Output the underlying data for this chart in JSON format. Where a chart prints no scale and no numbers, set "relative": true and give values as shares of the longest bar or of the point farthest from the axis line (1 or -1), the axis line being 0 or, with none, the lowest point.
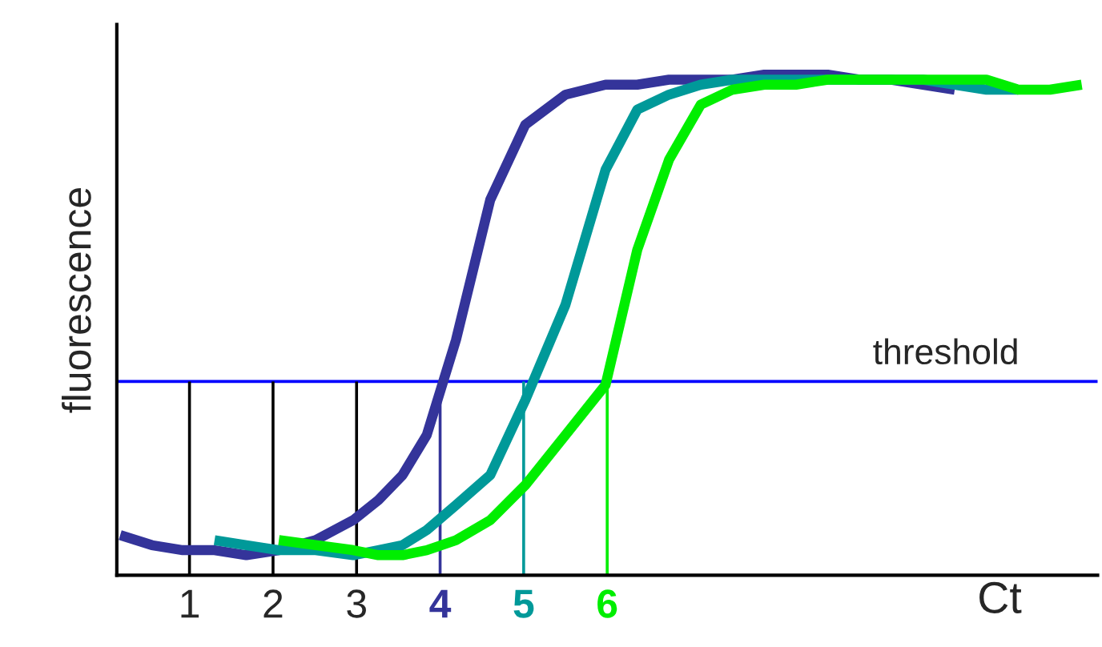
{
  "chart_data": {
    "type": "line",
    "relative": true,
    "ylabel": "fluorescence",
    "xlabel": "Ct",
    "x": [
      0.17,
      0.55,
      0.92,
      1.3,
      1.68,
      2.07,
      2.51,
      2.96,
      3.26,
      3.55,
      3.84,
      4.19,
      4.6,
      5.02,
      5.5,
      5.98,
      6.36,
      6.74,
      7.12,
      7.5,
      7.88,
      8.26,
      8.64,
      9.02,
      9.4,
      9.78,
      10.16,
      10.54,
      10.92,
      11.3,
      11.68
    ],
    "xlim": [
      0.13,
      11.87
    ],
    "xticks": [
      1,
      2,
      3,
      4,
      5,
      6
    ],
    "tick_labels": "x",
    "legend": false,
    "line_style": "solid",
    "marker": "none",
    "series": [
      {
        "color": "#34349a",
        "values": [
          0.08,
          0.06,
          0.05,
          0.05,
          0.04,
          0.05,
          0.07,
          0.11,
          0.15,
          0.2,
          0.28,
          0.47,
          0.75,
          0.9,
          0.96,
          0.98,
          0.98,
          0.99,
          0.99,
          0.99,
          1.0,
          1.0,
          1.0,
          0.99,
          0.99,
          0.98,
          0.97,
          null,
          null,
          null,
          null
        ]
      },
      {
        "color": "#009999",
        "values": [
          null,
          null,
          null,
          0.07,
          0.06,
          0.05,
          0.05,
          0.04,
          0.05,
          0.06,
          0.09,
          0.14,
          0.2,
          0.35,
          0.54,
          0.81,
          0.93,
          0.96,
          0.98,
          0.99,
          0.99,
          0.99,
          0.99,
          0.99,
          0.99,
          0.99,
          0.98,
          0.97,
          0.97,
          null,
          null
        ]
      },
      {
        "color": "#00ee00",
        "values": [
          null,
          null,
          null,
          null,
          null,
          0.07,
          0.06,
          0.05,
          0.04,
          0.04,
          0.05,
          0.07,
          0.11,
          0.18,
          0.28,
          0.38,
          0.65,
          0.83,
          0.94,
          0.97,
          0.98,
          0.98,
          0.99,
          0.99,
          0.99,
          0.99,
          0.99,
          0.99,
          0.97,
          0.97,
          0.98
        ]
      }
    ],
    "ref_lines": [
      {
        "axis": "y",
        "value": 0.387,
        "label": "threshold",
        "color": "#0000ff"
      },
      {
        "axis": "x",
        "value": 1,
        "color": "#000000"
      },
      {
        "axis": "x",
        "value": 2,
        "color": "#000000"
      },
      {
        "axis": "x",
        "value": 3,
        "color": "#000000"
      },
      {
        "axis": "x",
        "value": 4,
        "color": "#34349a"
      },
      {
        "axis": "x",
        "value": 5,
        "color": "#009999"
      },
      {
        "axis": "x",
        "value": 6,
        "color": "#00ee00"
      }
    ]
  }
}
